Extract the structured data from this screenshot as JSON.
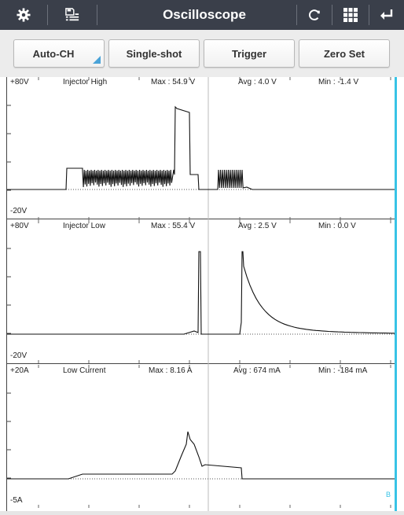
{
  "app": {
    "title": "Oscilloscope"
  },
  "titlebar": {
    "icons": [
      "settings-icon",
      "save-list-icon",
      "refresh-icon",
      "grid-icon",
      "back-icon"
    ]
  },
  "toolbar": {
    "buttons": [
      {
        "label": "Auto-CH"
      },
      {
        "label": "Single-shot"
      },
      {
        "label": "Trigger"
      },
      {
        "label": "Zero Set"
      }
    ]
  },
  "channels": [
    {
      "top_label": "+80V",
      "bottom_label": "-20V",
      "name": "Injector High",
      "max": "Max : 54.9 V",
      "avg": "Avg : 4.0 V",
      "min": "Min : -1.4 V"
    },
    {
      "top_label": "+80V",
      "bottom_label": "-20V",
      "name": "Injector Low",
      "max": "Max : 55.4 V",
      "avg": "Avg : 2.5 V",
      "min": "Min : 0.0 V"
    },
    {
      "top_label": "+20A",
      "bottom_label": "-5A",
      "name": "Low Current",
      "max": "Max : 8.16 A",
      "avg": "Avg : 674 mA",
      "min": "Min : -184 mA"
    }
  ],
  "channel_indicator": "B",
  "colors": {
    "titlebar": "#3a3f4a",
    "accent": "#38c3e6",
    "trace": "#111111"
  }
}
